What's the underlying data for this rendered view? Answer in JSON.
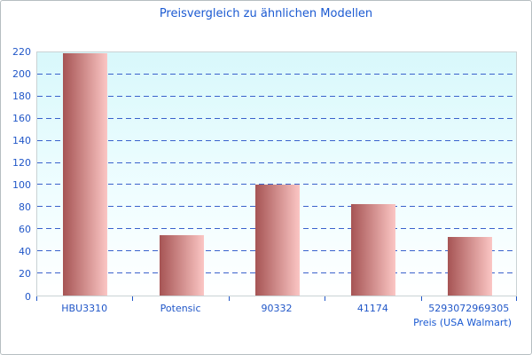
{
  "chart_data": {
    "type": "bar",
    "title": "Preisvergleich zu ähnlichen Modellen",
    "categories": [
      "HBU3310",
      "Potensic",
      "90332",
      "41174",
      "5293072969305"
    ],
    "values": [
      219,
      55,
      100,
      83,
      53
    ],
    "xlabel": "Preis (USA Walmart)",
    "ylabel": "",
    "ylim": [
      0,
      220
    ],
    "ytick_step": 20,
    "grid": "horizontal-dashed",
    "legend": "none",
    "colors": {
      "title_text": "#1b5ad2",
      "axis_text": "#2157c8",
      "gridline": "#3a62cc",
      "plot_border": "#c9d2d4",
      "plot_bg_top": "#d8f8fb",
      "plot_bg_bottom": "#ffffff",
      "bar_gradient_left": "#a65454",
      "bar_gradient_right": "#fbc6c4"
    }
  }
}
